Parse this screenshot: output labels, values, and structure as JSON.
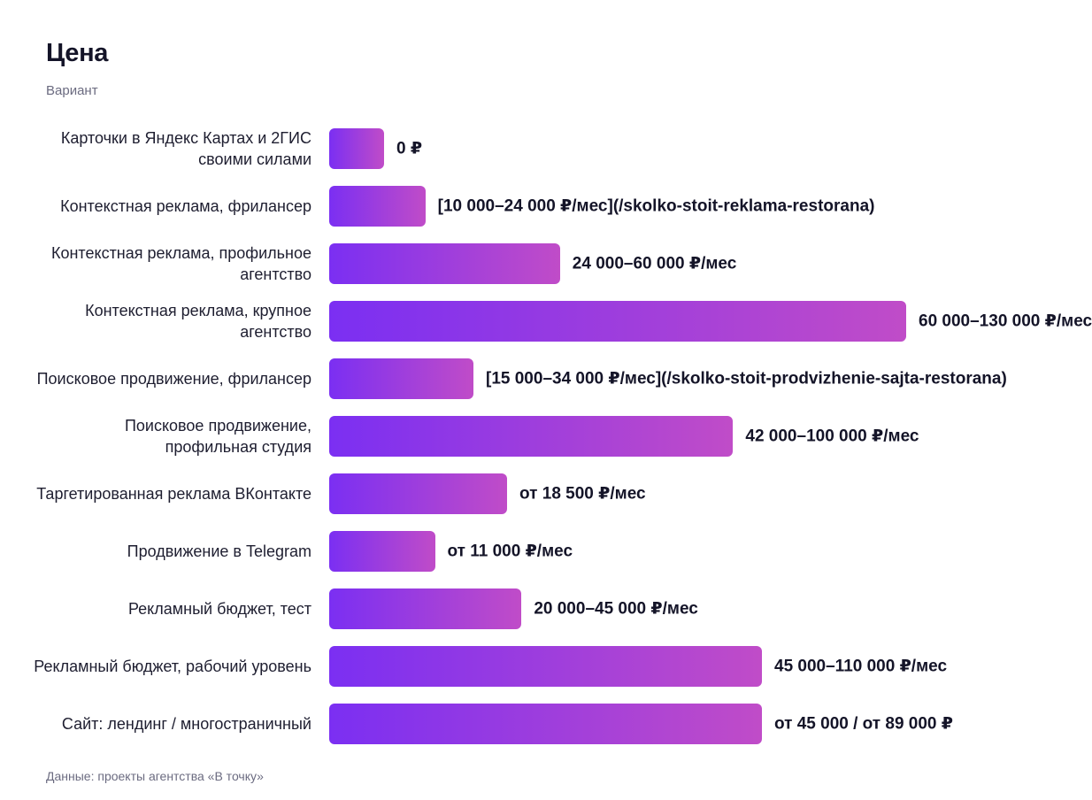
{
  "chart_data": {
    "type": "bar",
    "orientation": "horizontal",
    "title": "Цена",
    "ylabel": "Вариант",
    "source": "Данные: проекты агентства «В точку»",
    "xlim": [
      0,
      130000
    ],
    "grid": false,
    "categories": [
      "Карточки в Яндекс Картах и 2ГИС своими силами",
      "Контекстная реклама, фрилансер",
      "Контекстная реклама, профильное агентство",
      "Контекстная реклама, крупное агентство",
      "Поисковое продвижение, фрилансер",
      "Поисковое продвижение, профильная студия",
      "Таргетированная реклама ВКонтакте",
      "Продвижение в Telegram",
      "Рекламный бюджет, тест",
      "Рекламный бюджет, рабочий уровень",
      "Сайт: лендинг / многостраничный"
    ],
    "values": [
      0,
      10000,
      24000,
      60000,
      15000,
      42000,
      18500,
      11000,
      20000,
      45000,
      45000
    ],
    "value_labels": [
      "0 ₽",
      "[10 000–24 000 ₽/мес](/skolko-stoit-reklama-restorana)",
      "24 000–60 000 ₽/мес",
      "60 000–130 000 ₽/мес",
      "[15 000–34 000 ₽/мес](/skolko-stoit-prodvizhenie-sajta-restorana)",
      "42 000–100 000 ₽/мес",
      "от 18 500 ₽/мес",
      "от 11 000 ₽/мес",
      "20 000–45 000 ₽/мес",
      "45 000–110 000 ₽/мес",
      "от 45 000 / от 89 000 ₽"
    ],
    "colors": {
      "bar_start": "#7b2ff2",
      "bar_end": "#c04cc8"
    }
  }
}
